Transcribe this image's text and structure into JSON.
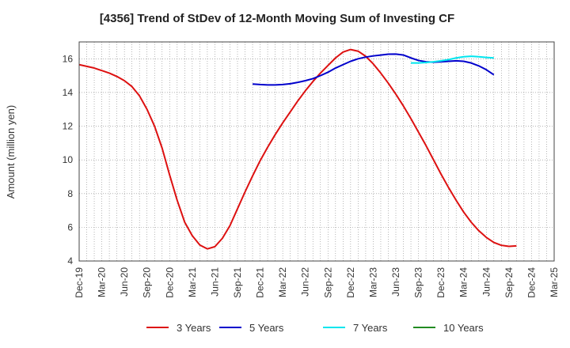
{
  "chart_data": {
    "type": "line",
    "title": "[4356]  Trend of StDev of 12-Month Moving Sum of Investing CF",
    "xlabel": "",
    "ylabel": "Amount (million yen)",
    "ylim": [
      4,
      17
    ],
    "yticks": [
      4,
      6,
      8,
      10,
      12,
      14,
      16
    ],
    "x_tick_labels": [
      "Dec-19",
      "Mar-20",
      "Jun-20",
      "Sep-20",
      "Dec-20",
      "Mar-21",
      "Jun-21",
      "Sep-21",
      "Dec-21",
      "Mar-22",
      "Jun-22",
      "Sep-22",
      "Dec-22",
      "Mar-23",
      "Jun-23",
      "Sep-23",
      "Dec-23",
      "Mar-24",
      "Jun-24",
      "Sep-24",
      "Dec-24",
      "Mar-25"
    ],
    "grid": true,
    "legend_position": "bottom",
    "series": [
      {
        "name": "3 Years",
        "color": "#dd1111",
        "points": [
          [
            "Dec-19",
            15.65
          ],
          [
            "Jan-20",
            15.55
          ],
          [
            "Feb-20",
            15.45
          ],
          [
            "Mar-20",
            15.3
          ],
          [
            "Apr-20",
            15.15
          ],
          [
            "May-20",
            14.95
          ],
          [
            "Jun-20",
            14.7
          ],
          [
            "Jul-20",
            14.35
          ],
          [
            "Aug-20",
            13.8
          ],
          [
            "Sep-20",
            13.0
          ],
          [
            "Oct-20",
            12.0
          ],
          [
            "Nov-20",
            10.7
          ],
          [
            "Dec-20",
            9.1
          ],
          [
            "Jan-21",
            7.6
          ],
          [
            "Feb-21",
            6.3
          ],
          [
            "Mar-21",
            5.5
          ],
          [
            "Apr-21",
            4.95
          ],
          [
            "May-21",
            4.72
          ],
          [
            "Jun-21",
            4.85
          ],
          [
            "Jul-21",
            5.35
          ],
          [
            "Aug-21",
            6.1
          ],
          [
            "Sep-21",
            7.1
          ],
          [
            "Oct-21",
            8.1
          ],
          [
            "Nov-21",
            9.05
          ],
          [
            "Dec-21",
            9.95
          ],
          [
            "Jan-22",
            10.75
          ],
          [
            "Feb-22",
            11.5
          ],
          [
            "Mar-22",
            12.2
          ],
          [
            "Apr-22",
            12.85
          ],
          [
            "May-22",
            13.5
          ],
          [
            "Jun-22",
            14.1
          ],
          [
            "Jul-22",
            14.65
          ],
          [
            "Aug-22",
            15.15
          ],
          [
            "Sep-22",
            15.6
          ],
          [
            "Oct-22",
            16.05
          ],
          [
            "Nov-22",
            16.4
          ],
          [
            "Dec-22",
            16.55
          ],
          [
            "Jan-23",
            16.45
          ],
          [
            "Feb-23",
            16.15
          ],
          [
            "Mar-23",
            15.7
          ],
          [
            "Apr-23",
            15.15
          ],
          [
            "May-23",
            14.55
          ],
          [
            "Jun-23",
            13.9
          ],
          [
            "Jul-23",
            13.2
          ],
          [
            "Aug-23",
            12.45
          ],
          [
            "Sep-23",
            11.65
          ],
          [
            "Oct-23",
            10.85
          ],
          [
            "Nov-23",
            10.0
          ],
          [
            "Dec-23",
            9.15
          ],
          [
            "Jan-24",
            8.35
          ],
          [
            "Feb-24",
            7.6
          ],
          [
            "Mar-24",
            6.9
          ],
          [
            "Apr-24",
            6.3
          ],
          [
            "May-24",
            5.8
          ],
          [
            "Jun-24",
            5.4
          ],
          [
            "Jul-24",
            5.1
          ],
          [
            "Aug-24",
            4.93
          ],
          [
            "Sep-24",
            4.87
          ],
          [
            "Oct-24",
            4.9
          ]
        ]
      },
      {
        "name": "5 Years",
        "color": "#0000cc",
        "points": [
          [
            "Nov-21",
            14.5
          ],
          [
            "Dec-21",
            14.47
          ],
          [
            "Jan-22",
            14.45
          ],
          [
            "Feb-22",
            14.45
          ],
          [
            "Mar-22",
            14.47
          ],
          [
            "Apr-22",
            14.52
          ],
          [
            "May-22",
            14.6
          ],
          [
            "Jun-22",
            14.7
          ],
          [
            "Jul-22",
            14.82
          ],
          [
            "Aug-22",
            15.0
          ],
          [
            "Sep-22",
            15.2
          ],
          [
            "Oct-22",
            15.45
          ],
          [
            "Nov-22",
            15.65
          ],
          [
            "Dec-22",
            15.85
          ],
          [
            "Jan-23",
            16.0
          ],
          [
            "Feb-23",
            16.1
          ],
          [
            "Mar-23",
            16.17
          ],
          [
            "Apr-23",
            16.22
          ],
          [
            "May-23",
            16.27
          ],
          [
            "Jun-23",
            16.28
          ],
          [
            "Jul-23",
            16.22
          ],
          [
            "Aug-23",
            16.05
          ],
          [
            "Sep-23",
            15.9
          ],
          [
            "Oct-23",
            15.82
          ],
          [
            "Nov-23",
            15.8
          ],
          [
            "Dec-23",
            15.82
          ],
          [
            "Jan-24",
            15.85
          ],
          [
            "Feb-24",
            15.88
          ],
          [
            "Mar-24",
            15.85
          ],
          [
            "Apr-24",
            15.75
          ],
          [
            "May-24",
            15.58
          ],
          [
            "Jun-24",
            15.35
          ],
          [
            "Jul-24",
            15.05
          ]
        ]
      },
      {
        "name": "7 Years",
        "color": "#00e5ee",
        "points": [
          [
            "Aug-23",
            15.75
          ],
          [
            "Sep-23",
            15.75
          ],
          [
            "Oct-23",
            15.78
          ],
          [
            "Nov-23",
            15.82
          ],
          [
            "Dec-23",
            15.88
          ],
          [
            "Jan-24",
            15.95
          ],
          [
            "Feb-24",
            16.05
          ],
          [
            "Mar-24",
            16.12
          ],
          [
            "Apr-24",
            16.15
          ],
          [
            "May-24",
            16.12
          ],
          [
            "Jun-24",
            16.08
          ],
          [
            "Jul-24",
            16.05
          ]
        ]
      },
      {
        "name": "10 Years",
        "color": "#228b22",
        "points": []
      }
    ]
  }
}
